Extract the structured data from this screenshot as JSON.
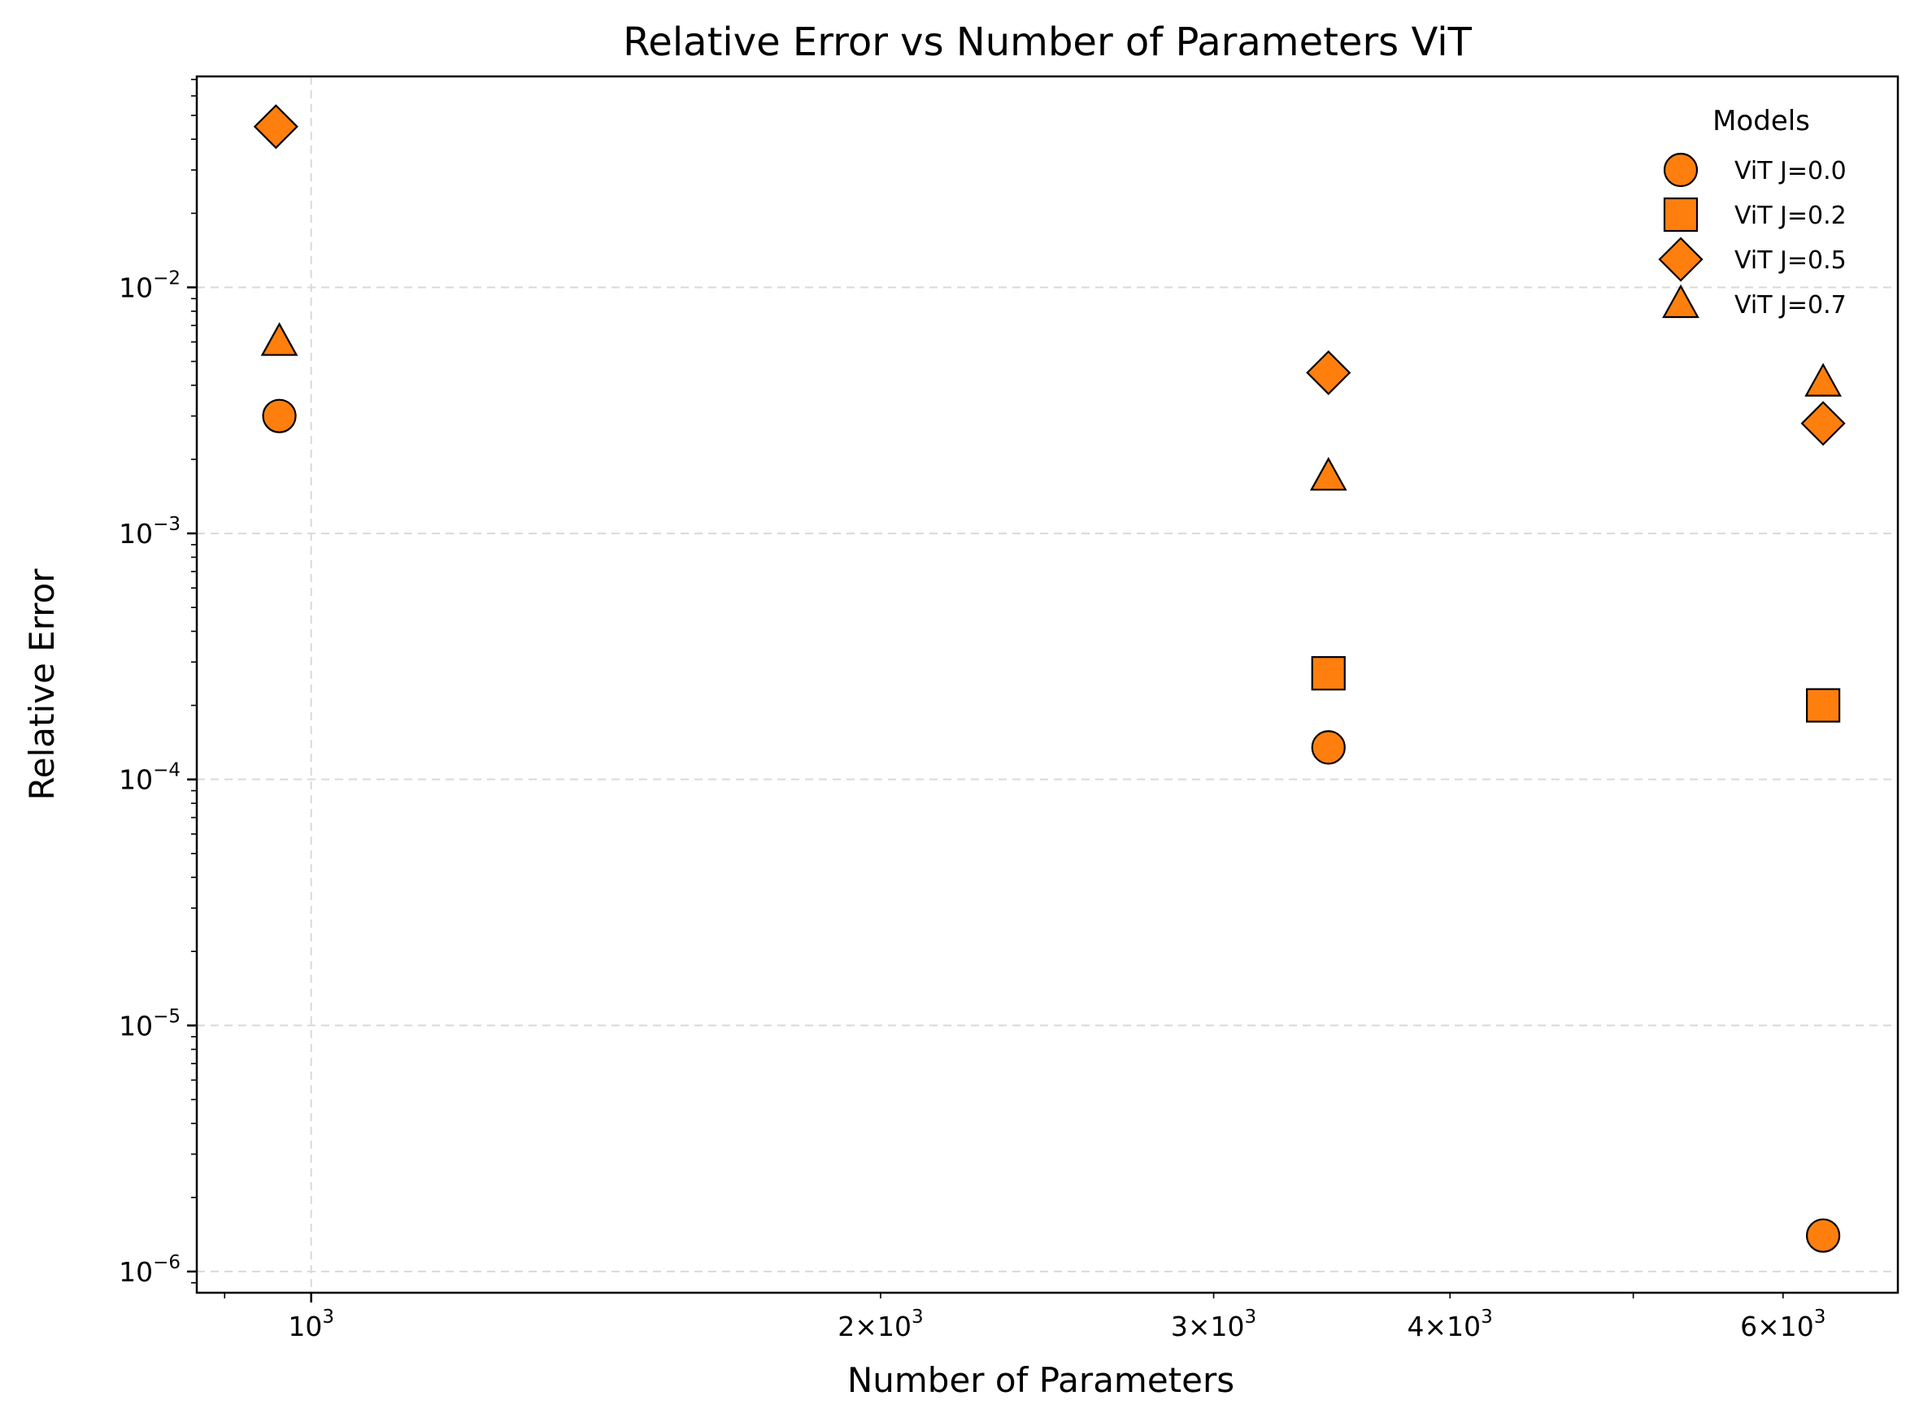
{
  "chart_data": {
    "type": "scatter",
    "title": "Relative Error vs Number of Parameters ViT",
    "xlabel": "Number of Parameters",
    "ylabel": "Relative Error",
    "xscale": "log",
    "yscale": "log",
    "xlim": [
      870,
      6900
    ],
    "ylim": [
      8.2e-07,
      0.072
    ],
    "grid": true,
    "legend": {
      "title": "Models",
      "placement": "top-right"
    },
    "x_ticks": [
      {
        "value": 1000,
        "base": "10",
        "exp": "3"
      },
      {
        "value": 2000,
        "base": "2×10",
        "exp": "3"
      },
      {
        "value": 3000,
        "base": "3×10",
        "exp": "3"
      },
      {
        "value": 4000,
        "base": "4×10",
        "exp": "3"
      },
      {
        "value": 6000,
        "base": "6×10",
        "exp": "3"
      }
    ],
    "y_ticks": [
      {
        "value": 1e-06,
        "base": "10",
        "exp": "−6"
      },
      {
        "value": 1e-05,
        "base": "10",
        "exp": "−5"
      },
      {
        "value": 0.0001,
        "base": "10",
        "exp": "−4"
      },
      {
        "value": 0.001,
        "base": "10",
        "exp": "−3"
      },
      {
        "value": 0.01,
        "base": "10",
        "exp": "−2"
      }
    ],
    "series": [
      {
        "name": "ViT J=0.0",
        "marker": "circle",
        "x": [
          962,
          3450,
          6300
        ],
        "y": [
          0.003,
          0.000135,
          1.4e-06
        ]
      },
      {
        "name": "ViT J=0.2",
        "marker": "square",
        "x": [
          3450,
          6300
        ],
        "y": [
          0.00027,
          0.0002
        ]
      },
      {
        "name": "ViT J=0.5",
        "marker": "diamond",
        "x": [
          958,
          3450,
          6300
        ],
        "y": [
          0.045,
          0.0045,
          0.0028
        ]
      },
      {
        "name": "ViT J=0.7",
        "marker": "triangle",
        "x": [
          962,
          3450,
          6300
        ],
        "y": [
          0.006,
          0.0017,
          0.0041
        ]
      }
    ],
    "colors": {
      "marker_fill": "#ff7f0e",
      "marker_edge": "#000000",
      "grid": "#d9d9d9"
    }
  }
}
